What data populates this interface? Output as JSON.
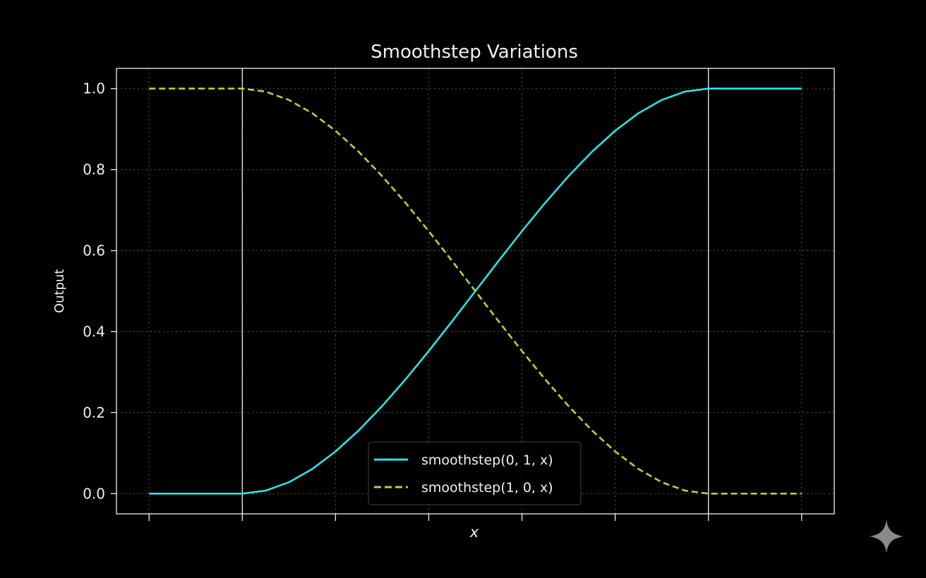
{
  "chart_data": {
    "type": "line",
    "title": "Smoothstep Variations",
    "xlabel": "x",
    "ylabel": "Output",
    "xlim": [
      -0.27,
      1.27
    ],
    "ylim": [
      -0.05,
      1.05
    ],
    "xticks": [
      -0.2,
      0.0,
      0.2,
      0.4,
      0.6,
      0.8,
      1.0,
      1.2
    ],
    "xtick_labels_visible": false,
    "yticks": [
      0.0,
      0.2,
      0.4,
      0.6,
      0.8,
      1.0
    ],
    "ytick_labels": [
      "0.0",
      "0.2",
      "0.4",
      "0.6",
      "0.8",
      "1.0"
    ],
    "grid": true,
    "vlines": [
      0.0,
      1.0
    ],
    "legend_position": "lower-center",
    "x": [
      -0.2,
      -0.15,
      -0.1,
      -0.05,
      0,
      0.05,
      0.1,
      0.15,
      0.2,
      0.25,
      0.3,
      0.35,
      0.4,
      0.45,
      0.5,
      0.55,
      0.6,
      0.65,
      0.7,
      0.75,
      0.8,
      0.85,
      0.9,
      0.95,
      1.0,
      1.05,
      1.1,
      1.15,
      1.2
    ],
    "series": [
      {
        "name": "smoothstep(0, 1, x)",
        "color": "#2ee3e3",
        "style": "solid",
        "values": [
          0,
          0,
          0,
          0,
          0,
          0.00725,
          0.028,
          0.06075,
          0.104,
          0.15625,
          0.216,
          0.28175,
          0.352,
          0.42525,
          0.5,
          0.57475,
          0.648,
          0.71825,
          0.784,
          0.84375,
          0.896,
          0.93925,
          0.972,
          0.99275,
          1,
          1,
          1,
          1,
          1
        ]
      },
      {
        "name": "smoothstep(1, 0, x)",
        "color": "#a8d93a",
        "style": "dashed",
        "values": [
          1,
          1,
          1,
          1,
          1,
          0.99275,
          0.972,
          0.93925,
          0.896,
          0.84375,
          0.784,
          0.71825,
          0.648,
          0.57475,
          0.5,
          0.42525,
          0.352,
          0.28175,
          0.216,
          0.15625,
          0.104,
          0.06075,
          0.028,
          0.00725,
          0,
          0,
          0,
          0,
          0
        ]
      }
    ]
  }
}
